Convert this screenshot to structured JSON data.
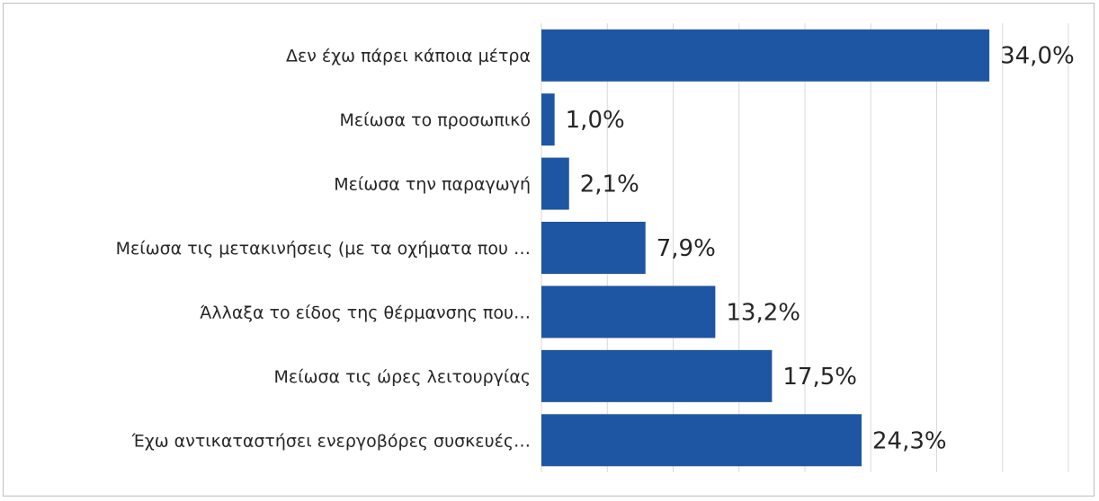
{
  "chart_data": {
    "type": "bar",
    "orientation": "horizontal",
    "categories": [
      "Δεν έχω πάρει κάποια μέτρα",
      "Μείωσα το προσωπικό",
      "Μείωσα την παραγωγή",
      "Μείωσα τις μετακινήσεις (με τα οχήματα που …",
      "Άλλαξα το είδος της θέρμανσης που…",
      "Μείωσα τις ώρες λειτουργίας",
      "Έχω αντικαταστήσει ενεργοβόρες συσκευές…"
    ],
    "values": [
      34.0,
      1.0,
      2.1,
      7.9,
      13.2,
      17.5,
      24.3
    ],
    "data_labels": [
      "34,0%",
      "1,0%",
      "2,1%",
      "7,9%",
      "13,2%",
      "17,5%",
      "24,3%"
    ],
    "xlim": [
      0,
      40
    ],
    "grid": true,
    "legend": "none",
    "colors": {
      "bar": "#1f56a3",
      "grid": "#d9d9d9",
      "text": "#262626"
    }
  }
}
